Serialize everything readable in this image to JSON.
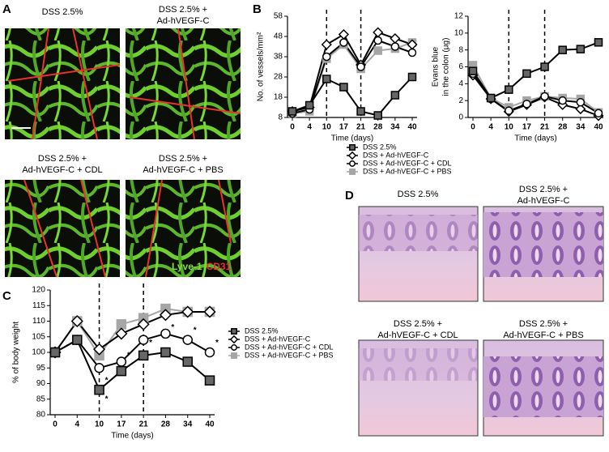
{
  "panel_labels": [
    "A",
    "B",
    "C",
    "D"
  ],
  "panel_a": {
    "images": [
      {
        "caption": [
          "DSS 2.5%"
        ]
      },
      {
        "caption": [
          "DSS 2.5% +",
          "Ad-hVEGF-C"
        ]
      },
      {
        "caption": [
          "DSS 2.5% +",
          "Ad-hVEGF-C + CDL"
        ]
      },
      {
        "caption": [
          "DSS 2.5% +",
          "Ad-hVEGF-C + PBS"
        ]
      }
    ],
    "stain_labels": [
      {
        "text": "Lyve-1",
        "color": "#7ee03a"
      },
      {
        "text": "CD31",
        "color": "#e8322a"
      }
    ]
  },
  "panel_d": {
    "images": [
      {
        "caption": [
          "DSS 2.5%"
        ]
      },
      {
        "caption": [
          "DSS 2.5% +",
          "Ad-hVEGF-C"
        ]
      },
      {
        "caption": [
          "DSS 2.5% +",
          "Ad-hVEGF-C + CDL"
        ]
      },
      {
        "caption": [
          "DSS 2.5% +",
          "Ad-hVEGF-C + PBS"
        ]
      }
    ]
  },
  "chart_data": [
    {
      "type": "line",
      "categories": [
        "0",
        "4",
        "10",
        "17",
        "21",
        "28",
        "34",
        "40"
      ],
      "ylabel": [
        "No. of vessels/mm²"
      ],
      "xlabel": "Time (days)",
      "ylim": [
        8,
        58
      ],
      "yticks": [
        8,
        18,
        28,
        38,
        48,
        58
      ],
      "reference_lines": [
        "10",
        "21"
      ],
      "legend": "below",
      "series": [
        {
          "name": "DSS 2.5%",
          "color": "#666666",
          "line_color": "#000000",
          "marker": "square",
          "values": [
            11,
            14,
            27,
            23,
            11,
            9,
            19,
            28
          ]
        },
        {
          "name": "DSS + Ad-hVEGF-C",
          "color": "#ffffff",
          "line_color": "#000000",
          "marker": "diamond",
          "values": [
            11,
            13,
            44,
            49,
            34,
            50,
            47,
            44
          ]
        },
        {
          "name": "DSS + Ad-hVEGF-C + CDL",
          "color": "#ffffff",
          "line_color": "#000000",
          "marker": "circle",
          "values": [
            10,
            12,
            38,
            45,
            33,
            46,
            43,
            40
          ]
        },
        {
          "name": "DSS + Ad-hVEGF-C + PBS",
          "color": "#a6a6a6",
          "line_color": "#a6a6a6",
          "marker": "square",
          "values": [
            10,
            11,
            37,
            44,
            32,
            41,
            42,
            45
          ]
        }
      ]
    },
    {
      "type": "line",
      "categories": [
        "0",
        "4",
        "10",
        "17",
        "21",
        "28",
        "34",
        "40"
      ],
      "ylabel": [
        "Evans blue",
        "in the colon (μg)"
      ],
      "xlabel": "Time (days)",
      "ylim": [
        0,
        12
      ],
      "yticks": [
        0,
        2,
        4,
        6,
        8,
        10,
        12
      ],
      "reference_lines": [
        "10",
        "21"
      ],
      "series": [
        {
          "color": "#666666",
          "line_color": "#000000",
          "marker": "square",
          "values": [
            5.5,
            2.3,
            3.3,
            5.2,
            6,
            8,
            8.1,
            8.9
          ]
        },
        {
          "color": "#ffffff",
          "line_color": "#000000",
          "marker": "diamond",
          "values": [
            5,
            2.2,
            0.7,
            1.5,
            2.4,
            1.5,
            1,
            0.2
          ]
        },
        {
          "color": "#ffffff",
          "line_color": "#000000",
          "marker": "circle",
          "values": [
            5.2,
            2.2,
            0.8,
            1.6,
            2.5,
            2,
            1.8,
            0.5
          ]
        },
        {
          "color": "#a6a6a6",
          "line_color": "#a6a6a6",
          "marker": "square",
          "values": [
            6.2,
            2.3,
            1.2,
            2,
            2.5,
            2.3,
            2.2,
            0.6
          ]
        }
      ]
    },
    {
      "type": "line",
      "categories": [
        "0",
        "4",
        "10",
        "17",
        "21",
        "28",
        "34",
        "40"
      ],
      "ylabel": [
        "% of body weight"
      ],
      "xlabel": "Time (days)",
      "ylim": [
        80,
        120
      ],
      "yticks": [
        80,
        85,
        90,
        95,
        100,
        105,
        110,
        115,
        120
      ],
      "reference_lines": [
        "10",
        "21"
      ],
      "legend": "right",
      "series": [
        {
          "name": "DSS 2.5%",
          "color": "#666666",
          "line_color": "#000000",
          "marker": "square",
          "values": [
            100,
            104,
            88,
            94,
            99,
            100,
            97,
            91
          ]
        },
        {
          "name": "DSS + Ad-hVEGF-C",
          "color": "#ffffff",
          "line_color": "#000000",
          "marker": "diamond",
          "values": [
            100,
            110,
            101,
            106,
            109,
            112,
            113,
            113
          ]
        },
        {
          "name": "DSS + Ad-hVEGF-C + CDL",
          "color": "#ffffff",
          "line_color": "#000000",
          "marker": "circle",
          "values": [
            100,
            104,
            95,
            97,
            104,
            106,
            104,
            100
          ]
        },
        {
          "name": "DSS + Ad-hVEGF-C + PBS",
          "color": "#a6a6a6",
          "line_color": "#a6a6a6",
          "marker": "square",
          "values": [
            100,
            110,
            99,
            109,
            111,
            114,
            113,
            113
          ]
        }
      ],
      "annotations": [
        {
          "text": "*",
          "category": "10",
          "y": 91
        },
        {
          "text": "*",
          "category": "10",
          "y": 85
        },
        {
          "text": "*",
          "category": "17",
          "y": 99
        },
        {
          "text": "*",
          "category": "21",
          "y": 103
        },
        {
          "text": "*",
          "category": "28",
          "y": 108
        },
        {
          "text": "*",
          "category": "34",
          "y": 107
        },
        {
          "text": "*",
          "category": "40",
          "y": 103
        }
      ]
    }
  ]
}
